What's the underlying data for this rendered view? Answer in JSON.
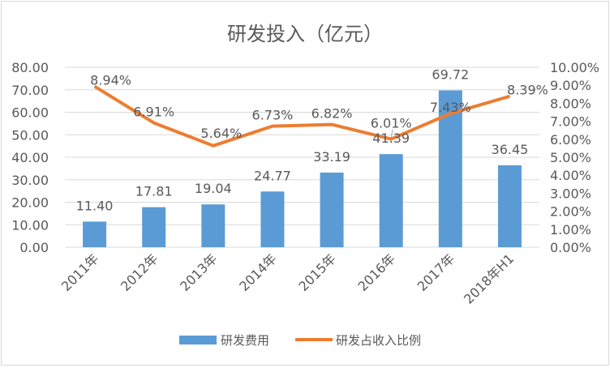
{
  "chart_data": {
    "type": "bar+line",
    "title": "研发投入（亿元）",
    "categories": [
      "2011年",
      "2012年",
      "2013年",
      "2014年",
      "2015年",
      "2016年",
      "2017年",
      "2018年H1"
    ],
    "series": [
      {
        "name": "研发费用",
        "type": "bar",
        "axis": "left",
        "color": "#5b9bd5",
        "values": [
          11.4,
          17.81,
          19.04,
          24.77,
          33.19,
          41.39,
          69.72,
          36.45
        ],
        "labels": [
          "11.40",
          "17.81",
          "19.04",
          "24.77",
          "33.19",
          "41.39",
          "69.72",
          "36.45"
        ]
      },
      {
        "name": "研发占收入比例",
        "type": "line",
        "axis": "right",
        "color": "#ed7d31",
        "values": [
          8.94,
          6.91,
          5.64,
          6.73,
          6.82,
          6.01,
          7.43,
          8.39
        ],
        "labels": [
          "8.94%",
          "6.91%",
          "5.64%",
          "6.73%",
          "6.82%",
          "6.01%",
          "7.43%",
          "8.39%"
        ]
      }
    ],
    "y_left": {
      "range": [
        0,
        80
      ],
      "ticks": [
        "0.00",
        "10.00",
        "20.00",
        "30.00",
        "40.00",
        "50.00",
        "60.00",
        "70.00",
        "80.00"
      ]
    },
    "y_right": {
      "range": [
        0,
        10
      ],
      "unit": "%",
      "ticks": [
        "0.00%",
        "1.00%",
        "2.00%",
        "3.00%",
        "4.00%",
        "5.00%",
        "6.00%",
        "7.00%",
        "8.00%",
        "9.00%",
        "10.00%"
      ]
    },
    "grid": true,
    "legend": "bottom"
  }
}
